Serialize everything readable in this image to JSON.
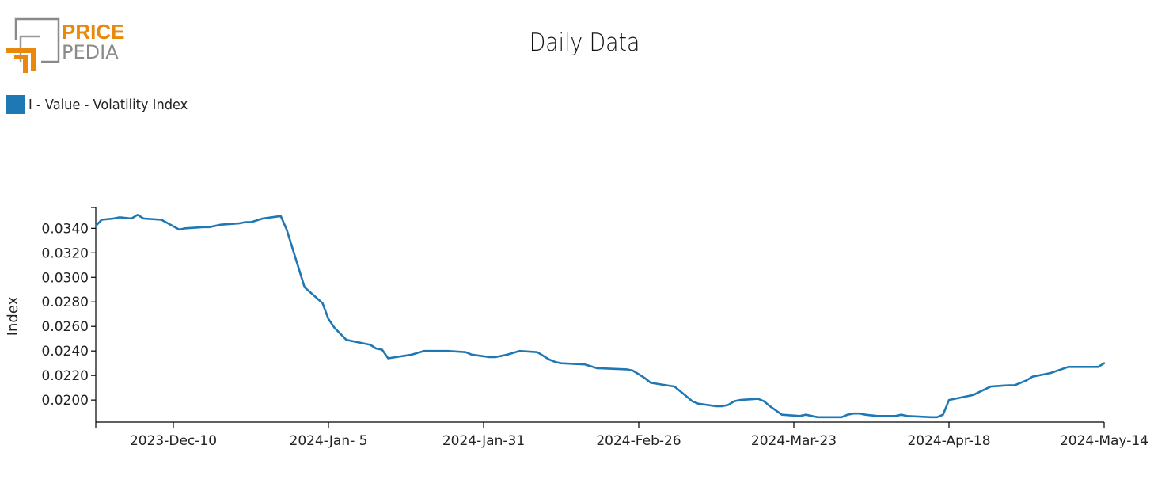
{
  "logo": {
    "line1": "PRICE",
    "line2": "PEDIA",
    "accent": "#e8880d",
    "gray": "#8a8a8a"
  },
  "chart_data": {
    "type": "line",
    "title": "Daily Data",
    "ylabel": "Index",
    "xlabel": "",
    "legend": "top-left",
    "grid": false,
    "xlim": [
      "2023-11-27",
      "2024-05-14"
    ],
    "ylim": [
      0.0182,
      0.0357
    ],
    "x_ticks": [
      "2023-11-27",
      "2023-12-10",
      "2024-01-05",
      "2024-01-31",
      "2024-02-26",
      "2024-03-23",
      "2024-04-18",
      "2024-05-14"
    ],
    "x_tick_labels": [
      "",
      "2023-Dec-10",
      "2024-Jan- 5",
      "2024-Jan-31",
      "2024-Feb-26",
      "2024-Mar-23",
      "2024-Apr-18",
      "2024-May-14"
    ],
    "y_ticks": [
      0.02,
      0.022,
      0.024,
      0.026,
      0.028,
      0.03,
      0.032,
      0.034
    ],
    "y_tick_labels": [
      "0.0200",
      "0.0220",
      "0.0240",
      "0.0260",
      "0.0280",
      "0.0300",
      "0.0320",
      "0.0340"
    ],
    "series": [
      {
        "name": "I - Value - Volatility Index",
        "color": "#1f77b4",
        "points": [
          [
            "2023-11-27",
            0.0342
          ],
          [
            "2023-11-28",
            0.0347
          ],
          [
            "2023-11-30",
            0.0348
          ],
          [
            "2023-12-01",
            0.0349
          ],
          [
            "2023-12-03",
            0.0348
          ],
          [
            "2023-12-04",
            0.0351
          ],
          [
            "2023-12-05",
            0.0348
          ],
          [
            "2023-12-08",
            0.0347
          ],
          [
            "2023-12-11",
            0.0339
          ],
          [
            "2023-12-12",
            0.034
          ],
          [
            "2023-12-15",
            0.0341
          ],
          [
            "2023-12-16",
            0.0341
          ],
          [
            "2023-12-18",
            0.0343
          ],
          [
            "2023-12-21",
            0.0344
          ],
          [
            "2023-12-22",
            0.0345
          ],
          [
            "2023-12-23",
            0.0345
          ],
          [
            "2023-12-25",
            0.0348
          ],
          [
            "2023-12-28",
            0.035
          ],
          [
            "2023-12-29",
            0.0339
          ],
          [
            "2024-01-01",
            0.0292
          ],
          [
            "2024-01-04",
            0.0279
          ],
          [
            "2024-01-05",
            0.0266
          ],
          [
            "2024-01-06",
            0.0259
          ],
          [
            "2024-01-08",
            0.0249
          ],
          [
            "2024-01-12",
            0.0245
          ],
          [
            "2024-01-13",
            0.0242
          ],
          [
            "2024-01-14",
            0.0241
          ],
          [
            "2024-01-15",
            0.0234
          ],
          [
            "2024-01-19",
            0.0237
          ],
          [
            "2024-01-21",
            0.024
          ],
          [
            "2024-01-25",
            0.024
          ],
          [
            "2024-01-28",
            0.0239
          ],
          [
            "2024-01-29",
            0.0237
          ],
          [
            "2024-02-01",
            0.0235
          ],
          [
            "2024-02-02",
            0.0235
          ],
          [
            "2024-02-04",
            0.0237
          ],
          [
            "2024-02-06",
            0.024
          ],
          [
            "2024-02-09",
            0.0239
          ],
          [
            "2024-02-11",
            0.0233
          ],
          [
            "2024-02-12",
            0.0231
          ],
          [
            "2024-02-13",
            0.023
          ],
          [
            "2024-02-17",
            0.0229
          ],
          [
            "2024-02-19",
            0.0226
          ],
          [
            "2024-02-24",
            0.0225
          ],
          [
            "2024-02-25",
            0.0224
          ],
          [
            "2024-02-26",
            0.0221
          ],
          [
            "2024-02-27",
            0.0218
          ],
          [
            "2024-02-28",
            0.0214
          ],
          [
            "2024-03-03",
            0.0211
          ],
          [
            "2024-03-05",
            0.0203
          ],
          [
            "2024-03-06",
            0.0199
          ],
          [
            "2024-03-07",
            0.0197
          ],
          [
            "2024-03-10",
            0.0195
          ],
          [
            "2024-03-11",
            0.0195
          ],
          [
            "2024-03-12",
            0.0196
          ],
          [
            "2024-03-13",
            0.0199
          ],
          [
            "2024-03-14",
            0.02
          ],
          [
            "2024-03-17",
            0.0201
          ],
          [
            "2024-03-18",
            0.0199
          ],
          [
            "2024-03-19",
            0.0195
          ],
          [
            "2024-03-21",
            0.0188
          ],
          [
            "2024-03-24",
            0.0187
          ],
          [
            "2024-03-25",
            0.0188
          ],
          [
            "2024-03-27",
            0.0186
          ],
          [
            "2024-03-31",
            0.0186
          ],
          [
            "2024-04-01",
            0.0188
          ],
          [
            "2024-04-02",
            0.0189
          ],
          [
            "2024-04-03",
            0.0189
          ],
          [
            "2024-04-04",
            0.0188
          ],
          [
            "2024-04-06",
            0.0187
          ],
          [
            "2024-04-09",
            0.0187
          ],
          [
            "2024-04-10",
            0.0188
          ],
          [
            "2024-04-11",
            0.0187
          ],
          [
            "2024-04-15",
            0.0186
          ],
          [
            "2024-04-16",
            0.0186
          ],
          [
            "2024-04-17",
            0.0188
          ],
          [
            "2024-04-18",
            0.02
          ],
          [
            "2024-04-22",
            0.0204
          ],
          [
            "2024-04-25",
            0.0211
          ],
          [
            "2024-04-28",
            0.0212
          ],
          [
            "2024-04-29",
            0.0212
          ],
          [
            "2024-04-30",
            0.0214
          ],
          [
            "2024-05-01",
            0.0216
          ],
          [
            "2024-05-02",
            0.0219
          ],
          [
            "2024-05-05",
            0.0222
          ],
          [
            "2024-05-08",
            0.0227
          ],
          [
            "2024-05-10",
            0.0227
          ],
          [
            "2024-05-12",
            0.0227
          ],
          [
            "2024-05-13",
            0.0227
          ],
          [
            "2024-05-14",
            0.023
          ]
        ]
      }
    ]
  }
}
